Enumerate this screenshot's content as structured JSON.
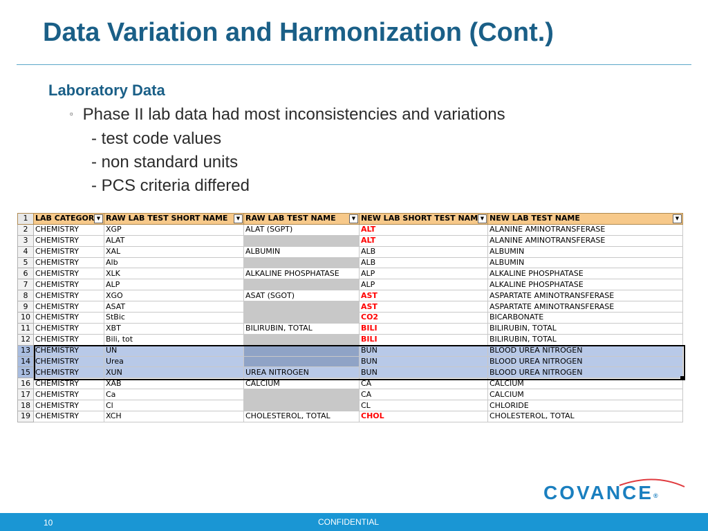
{
  "slide": {
    "title": "Data Variation and Harmonization (Cont.)",
    "section": "Laboratory Data",
    "bullet": "Phase II lab data had most inconsistencies and variations",
    "subitems": [
      "- test code values",
      "- non standard units",
      "- PCS criteria differed"
    ]
  },
  "sheet": {
    "header_row_number": "1",
    "headers": [
      "LAB CATEGOR",
      "RAW LAB TEST SHORT NAME",
      "RAW LAB TEST NAME",
      "NEW LAB SHORT TEST NAM",
      "NEW LAB TEST NAME"
    ],
    "dropdown_glyph": "▼",
    "rows": [
      {
        "n": "2",
        "c": [
          "CHEMISTRY",
          "XGP",
          "ALAT (SGPT)",
          "ALT",
          "ALANINE AMINOTRANSFERASE"
        ],
        "grey": false,
        "red": true,
        "sel": false
      },
      {
        "n": "3",
        "c": [
          "CHEMISTRY",
          "ALAT",
          "",
          "ALT",
          "ALANINE AMINOTRANSFERASE"
        ],
        "grey": true,
        "red": true,
        "sel": false
      },
      {
        "n": "4",
        "c": [
          "CHEMISTRY",
          "XAL",
          "ALBUMIN",
          "ALB",
          "ALBUMIN"
        ],
        "grey": false,
        "red": false,
        "sel": false
      },
      {
        "n": "5",
        "c": [
          "CHEMISTRY",
          "Alb",
          "",
          "ALB",
          "ALBUMIN"
        ],
        "grey": true,
        "red": false,
        "sel": false
      },
      {
        "n": "6",
        "c": [
          "CHEMISTRY",
          "XLK",
          "ALKALINE PHOSPHATASE",
          "ALP",
          "ALKALINE PHOSPHATASE"
        ],
        "grey": false,
        "red": false,
        "sel": false
      },
      {
        "n": "7",
        "c": [
          "CHEMISTRY",
          "ALP",
          "",
          "ALP",
          "ALKALINE PHOSPHATASE"
        ],
        "grey": true,
        "red": false,
        "sel": false
      },
      {
        "n": "8",
        "c": [
          "CHEMISTRY",
          "XGO",
          "ASAT (SGOT)",
          "AST",
          "ASPARTATE AMINOTRANSFERASE"
        ],
        "grey": false,
        "red": true,
        "sel": false
      },
      {
        "n": "9",
        "c": [
          "CHEMISTRY",
          "ASAT",
          "",
          "AST",
          "ASPARTATE AMINOTRANSFERASE"
        ],
        "grey": true,
        "red": true,
        "sel": false
      },
      {
        "n": "10",
        "c": [
          "CHEMISTRY",
          "StBic",
          "",
          "CO2",
          "BICARBONATE"
        ],
        "grey": true,
        "red": true,
        "sel": false
      },
      {
        "n": "11",
        "c": [
          "CHEMISTRY",
          "XBT",
          "BILIRUBIN, TOTAL",
          "BILI",
          "BILIRUBIN, TOTAL"
        ],
        "grey": false,
        "red": true,
        "sel": false
      },
      {
        "n": "12",
        "c": [
          "CHEMISTRY",
          "Bili, tot",
          "",
          "BILI",
          "BILIRUBIN, TOTAL"
        ],
        "grey": true,
        "red": true,
        "sel": false
      },
      {
        "n": "13",
        "c": [
          "CHEMISTRY",
          "UN",
          "",
          "BUN",
          "BLOOD UREA NITROGEN"
        ],
        "grey": true,
        "red": false,
        "sel": true
      },
      {
        "n": "14",
        "c": [
          "CHEMISTRY",
          "Urea",
          "",
          "BUN",
          "BLOOD UREA NITROGEN"
        ],
        "grey": true,
        "red": false,
        "sel": true
      },
      {
        "n": "15",
        "c": [
          "CHEMISTRY",
          "XUN",
          "UREA NITROGEN",
          "BUN",
          "BLOOD UREA NITROGEN"
        ],
        "grey": false,
        "red": false,
        "sel": true
      },
      {
        "n": "16",
        "c": [
          "CHEMISTRY",
          "XAB",
          "CALCIUM",
          "CA",
          "CALCIUM"
        ],
        "grey": false,
        "red": false,
        "sel": false
      },
      {
        "n": "17",
        "c": [
          "CHEMISTRY",
          "Ca",
          "",
          "CA",
          "CALCIUM"
        ],
        "grey": true,
        "red": false,
        "sel": false
      },
      {
        "n": "18",
        "c": [
          "CHEMISTRY",
          "Cl",
          "",
          "CL",
          "CHLORIDE"
        ],
        "grey": true,
        "red": false,
        "sel": false
      },
      {
        "n": "19",
        "c": [
          "CHEMISTRY",
          "XCH",
          "CHOLESTEROL, TOTAL",
          "CHOL",
          "CHOLESTEROL, TOTAL"
        ],
        "grey": false,
        "red": true,
        "sel": false
      }
    ]
  },
  "logo": {
    "text": "COVANCE",
    "mark": "®",
    "color": "#1a7fbf",
    "swoosh_color": "#e03a3e"
  },
  "footer": {
    "page_number": "10",
    "label": "CONFIDENTIAL",
    "color": "#1a96d4"
  }
}
